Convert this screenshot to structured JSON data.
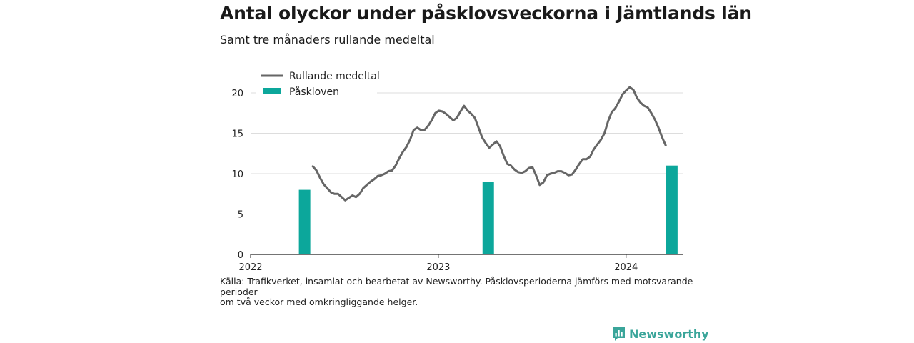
{
  "title": "Antal olyckor under påsklovsveckorna i Jämtlands län",
  "subtitle": "Samt tre månaders rullande medeltal",
  "source_lines": [
    "Källa: Trafikverket, insamlat och bearbetat av Newsworthy. Påsklovsperioderna jämförs med motsvarande",
    "perioder",
    "om två veckor med omkringliggande helger."
  ],
  "brand": "Newsworthy",
  "colors": {
    "line": "#666666",
    "bar": "#0ca79b",
    "grid": "#dddddd",
    "brand": "#3aa59a"
  },
  "chart_data": {
    "type": "bar+line",
    "ylim": [
      0,
      21
    ],
    "yticks": [
      0,
      5,
      10,
      15,
      20
    ],
    "xlim": [
      "2022-01-01",
      "2024-04-20"
    ],
    "xticks": [
      {
        "date": "2022-01-01",
        "label": "2022"
      },
      {
        "date": "2023-01-01",
        "label": "2023"
      },
      {
        "date": "2024-01-01",
        "label": "2024"
      }
    ],
    "legend": {
      "placement": "top-left",
      "entries": [
        {
          "label": "Rullande medeltal",
          "kind": "line"
        },
        {
          "label": "Påskloven",
          "kind": "bar"
        }
      ]
    },
    "bars": {
      "name": "Påskloven",
      "points": [
        {
          "date": "2022-04-16",
          "value": 8
        },
        {
          "date": "2023-04-08",
          "value": 9
        },
        {
          "date": "2024-03-30",
          "value": 11
        }
      ]
    },
    "line": {
      "name": "Rullande medeltal",
      "points": [
        [
          "2022-05-02",
          10.9
        ],
        [
          "2022-05-09",
          10.4
        ],
        [
          "2022-05-16",
          9.5
        ],
        [
          "2022-05-23",
          8.7
        ],
        [
          "2022-05-30",
          8.2
        ],
        [
          "2022-06-06",
          7.7
        ],
        [
          "2022-06-13",
          7.5
        ],
        [
          "2022-06-20",
          7.5
        ],
        [
          "2022-06-27",
          7.1
        ],
        [
          "2022-07-04",
          6.7
        ],
        [
          "2022-07-11",
          7.0
        ],
        [
          "2022-07-18",
          7.3
        ],
        [
          "2022-07-25",
          7.1
        ],
        [
          "2022-08-01",
          7.5
        ],
        [
          "2022-08-08",
          8.2
        ],
        [
          "2022-08-15",
          8.6
        ],
        [
          "2022-08-22",
          9.0
        ],
        [
          "2022-08-29",
          9.3
        ],
        [
          "2022-09-05",
          9.7
        ],
        [
          "2022-09-12",
          9.8
        ],
        [
          "2022-09-19",
          10.0
        ],
        [
          "2022-09-26",
          10.3
        ],
        [
          "2022-10-03",
          10.4
        ],
        [
          "2022-10-10",
          11.0
        ],
        [
          "2022-10-17",
          11.9
        ],
        [
          "2022-10-24",
          12.7
        ],
        [
          "2022-10-31",
          13.3
        ],
        [
          "2022-11-07",
          14.2
        ],
        [
          "2022-11-14",
          15.4
        ],
        [
          "2022-11-21",
          15.7
        ],
        [
          "2022-11-28",
          15.4
        ],
        [
          "2022-12-05",
          15.4
        ],
        [
          "2022-12-12",
          15.9
        ],
        [
          "2022-12-19",
          16.6
        ],
        [
          "2022-12-26",
          17.5
        ],
        [
          "2023-01-02",
          17.8
        ],
        [
          "2023-01-09",
          17.7
        ],
        [
          "2023-01-16",
          17.4
        ],
        [
          "2023-01-23",
          17.0
        ],
        [
          "2023-01-30",
          16.6
        ],
        [
          "2023-02-06",
          16.9
        ],
        [
          "2023-02-13",
          17.7
        ],
        [
          "2023-02-20",
          18.4
        ],
        [
          "2023-02-27",
          17.8
        ],
        [
          "2023-03-06",
          17.4
        ],
        [
          "2023-03-13",
          16.9
        ],
        [
          "2023-03-20",
          15.7
        ],
        [
          "2023-03-27",
          14.5
        ],
        [
          "2023-04-03",
          13.8
        ],
        [
          "2023-04-10",
          13.2
        ],
        [
          "2023-04-17",
          13.6
        ],
        [
          "2023-04-24",
          14.0
        ],
        [
          "2023-05-01",
          13.4
        ],
        [
          "2023-05-08",
          12.2
        ],
        [
          "2023-05-15",
          11.2
        ],
        [
          "2023-05-22",
          11.0
        ],
        [
          "2023-05-29",
          10.5
        ],
        [
          "2023-06-05",
          10.2
        ],
        [
          "2023-06-12",
          10.1
        ],
        [
          "2023-06-19",
          10.3
        ],
        [
          "2023-06-26",
          10.7
        ],
        [
          "2023-07-03",
          10.8
        ],
        [
          "2023-07-10",
          9.8
        ],
        [
          "2023-07-17",
          8.6
        ],
        [
          "2023-07-24",
          8.9
        ],
        [
          "2023-07-31",
          9.8
        ],
        [
          "2023-08-07",
          10.0
        ],
        [
          "2023-08-14",
          10.1
        ],
        [
          "2023-08-21",
          10.3
        ],
        [
          "2023-08-28",
          10.3
        ],
        [
          "2023-09-04",
          10.1
        ],
        [
          "2023-09-11",
          9.8
        ],
        [
          "2023-09-18",
          9.9
        ],
        [
          "2023-09-25",
          10.5
        ],
        [
          "2023-10-02",
          11.2
        ],
        [
          "2023-10-09",
          11.8
        ],
        [
          "2023-10-16",
          11.8
        ],
        [
          "2023-10-23",
          12.1
        ],
        [
          "2023-10-30",
          13.0
        ],
        [
          "2023-11-06",
          13.6
        ],
        [
          "2023-11-13",
          14.2
        ],
        [
          "2023-11-20",
          15.0
        ],
        [
          "2023-11-27",
          16.5
        ],
        [
          "2023-12-04",
          17.6
        ],
        [
          "2023-12-11",
          18.1
        ],
        [
          "2023-12-18",
          18.9
        ],
        [
          "2023-12-25",
          19.8
        ],
        [
          "2024-01-01",
          20.3
        ],
        [
          "2024-01-08",
          20.7
        ],
        [
          "2024-01-15",
          20.4
        ],
        [
          "2024-01-22",
          19.4
        ],
        [
          "2024-01-29",
          18.8
        ],
        [
          "2024-02-05",
          18.4
        ],
        [
          "2024-02-12",
          18.2
        ],
        [
          "2024-02-19",
          17.5
        ],
        [
          "2024-02-26",
          16.7
        ],
        [
          "2024-03-04",
          15.7
        ],
        [
          "2024-03-11",
          14.5
        ],
        [
          "2024-03-18",
          13.5
        ]
      ]
    }
  }
}
